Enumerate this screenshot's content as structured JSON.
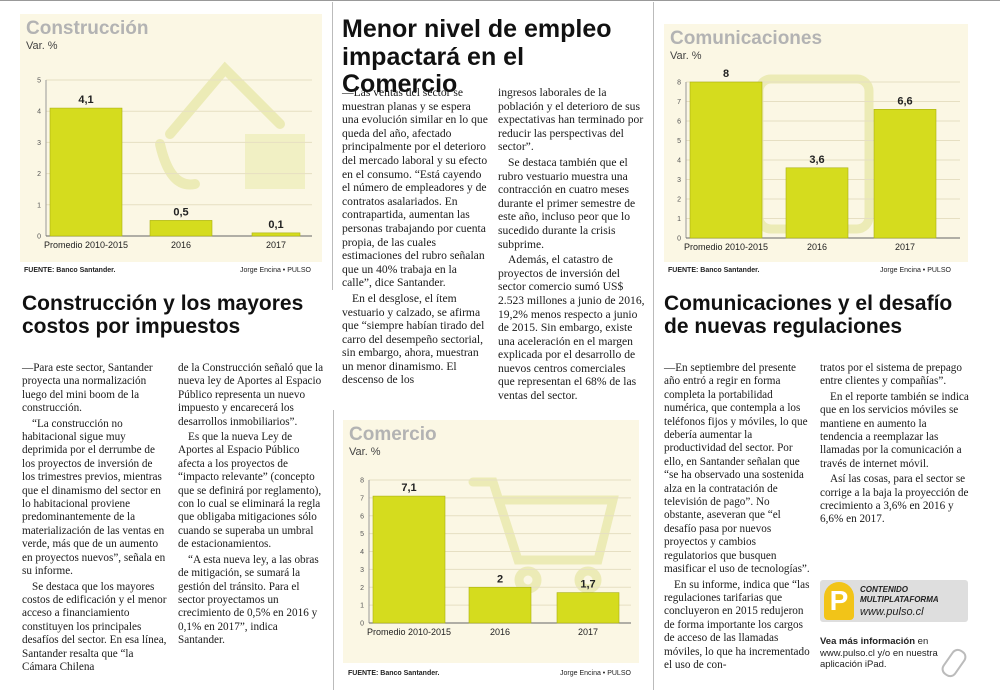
{
  "charts": {
    "construccion": {
      "title": "Construcción",
      "subtitle": "Var. %",
      "source": "FUENTE: Banco Santander.",
      "credit": "Jorge Encina • PULSO",
      "chart_data": {
        "type": "bar",
        "title": "Construcción",
        "ylabel": "Var. %",
        "categories": [
          "Promedio 2010-2015",
          "2016",
          "2017"
        ],
        "values": [
          4.1,
          0.5,
          0.1
        ],
        "labels": [
          "4,1",
          "0,5",
          "0,1"
        ],
        "ylim": [
          0,
          5
        ],
        "yticks": [
          "0",
          "1",
          "2",
          "3",
          "4",
          "5"
        ]
      }
    },
    "comunicaciones": {
      "title": "Comunicaciones",
      "subtitle": "Var. %",
      "source": "FUENTE: Banco Santander.",
      "credit": "Jorge Encina • PULSO",
      "chart_data": {
        "type": "bar",
        "title": "Comunicaciones",
        "ylabel": "Var. %",
        "categories": [
          "Promedio 2010-2015",
          "2016",
          "2017"
        ],
        "values": [
          8,
          3.6,
          6.6
        ],
        "labels": [
          "8",
          "3,6",
          "6,6"
        ],
        "ylim": [
          0,
          8
        ],
        "yticks": [
          "0",
          "1",
          "2",
          "3",
          "4",
          "5",
          "6",
          "7",
          "8"
        ]
      }
    },
    "comercio": {
      "title": "Comercio",
      "subtitle": "Var. %",
      "source": "FUENTE: Banco Santander.",
      "credit": "Jorge Encina • PULSO",
      "chart_data": {
        "type": "bar",
        "title": "Comercio",
        "ylabel": "Var. %",
        "categories": [
          "Promedio 2010-2015",
          "2016",
          "2017"
        ],
        "values": [
          7.1,
          2,
          1.7
        ],
        "labels": [
          "7,1",
          "2",
          "1,7"
        ],
        "ylim": [
          0,
          8
        ],
        "yticks": [
          "0",
          "1",
          "2",
          "3",
          "4",
          "5",
          "6",
          "7",
          "8"
        ]
      }
    }
  },
  "comercio_article": {
    "headline": "Menor nivel de empleo impactará en el Comercio",
    "col1": [
      "—Las ventas del sector se muestran planas y se espera una evolución similar en lo que queda del año, afectado principalmente por el deterioro del mercado laboral y su efecto en el consumo. “Está cayendo el número de empleadores y de contratos asalariados. En contrapartida, aumentan las personas trabajando por cuenta propia, de las cuales estimaciones del rubro señalan que un 40% trabaja en la calle”, dice Santander.",
      "En el desglose, el ítem vestuario y calzado, se afirma que “siempre habían tirado del carro del desempeño sectorial, sin embargo, ahora, muestran un menor dinamismo. El descenso de los"
    ],
    "col2": [
      "ingresos laborales de la población y el deterioro de sus expectativas han terminado por reducir las perspectivas del sector”.",
      "Se destaca también que el rubro vestuario muestra una contracción en cuatro meses durante el primer semestre de este año, incluso peor que lo sucedido durante la crisis subprime.",
      "Además, el catastro de proyectos de inversión del sector comercio sumó US$ 2.523 millones a junio de 2016, 19,2% menos respecto a junio de 2015. Sin embargo, existe una aceleración en el margen explicada por el desarrollo de nuevos centros comerciales que representan el 68% de las ventas del sector."
    ]
  },
  "construccion_article": {
    "headline": "Construcción y los mayores costos por impuestos",
    "col1": [
      "—Para este sector, Santander proyecta una normalización luego del mini boom de la construcción.",
      "“La construcción no habitacional sigue muy deprimida por el derrumbe de los proyectos de inversión de los trimestres previos, mientras que el dinamismo del sector en lo habitacional proviene predominantemente de la materialización de las ventas en verde, más que de un aumento en proyectos nuevos”, señala en su informe.",
      "Se destaca que los mayores costos de edificación y el menor acceso a financiamiento constituyen los principales desafíos del sector. En esa línea, Santander resalta que “la Cámara Chilena"
    ],
    "col2": [
      "de la Construcción señaló que la nueva ley de Aportes al Espacio Público representa un nuevo impuesto y encarecerá los desarrollos inmobiliarios”.",
      "Es que la nueva Ley de Aportes al Espacio Público afecta a los proyectos de “impacto relevante” (concepto que se definirá por reglamento), con lo cual se eliminará la regla que obligaba mitigaciones sólo cuando se superaba un umbral de estacionamientos.",
      "“A esta nueva ley, a las obras de mitigación, se sumará la gestión del tránsito. Para el sector proyectamos un crecimiento de 0,5% en 2016 y 0,1% en 2017”, indica Santander."
    ]
  },
  "comunicaciones_article": {
    "headline": "Comunicaciones y el desafío de nuevas regulaciones",
    "col1": [
      "—En septiembre del presente año entró a regir en forma completa la portabilidad numérica, que contempla a los teléfonos fijos y móviles, lo que debería aumentar la productividad del sector. Por ello, en Santander señalan que “se ha observado una sostenida alza en la contratación de televisión de pago”. No obstante, aseveran que “el desafío pasa por nuevos proyectos y cambios regulatorios que busquen masificar el uso de tecnologías”.",
      "En su informe, indica que “las regulaciones tarifarias que concluyeron en 2015 redujeron de forma importante los cargos de acceso de las llamadas móviles, lo que ha incrementado el uso de con-"
    ],
    "col2": [
      "tratos por el sistema de prepago entre clientes y compañías”.",
      "En el reporte también se indica que en los servicios móviles se mantiene en aumento la tendencia a reemplazar las llamadas por la comunicación a través de internet móvil.",
      "Así las cosas, para el sector se corrige a la baja la proyección de crecimiento a 3,6% en 2016 y 6,6% en 2017."
    ]
  },
  "promo": {
    "logo_letter": "P",
    "badge_line1": "CONTENIDO",
    "badge_line2": "MULTIPLATAFORMA",
    "url": "www.pulso.cl",
    "info_bold": "Vea más información",
    "info_rest": " en www.pulso.cl y/o en nuestra aplicación iPad."
  },
  "colors": {
    "bar": "#d5dc1e",
    "bar_edge": "#a9b012",
    "panel": "#fbf7e4",
    "grid": "#e6dfc2"
  }
}
